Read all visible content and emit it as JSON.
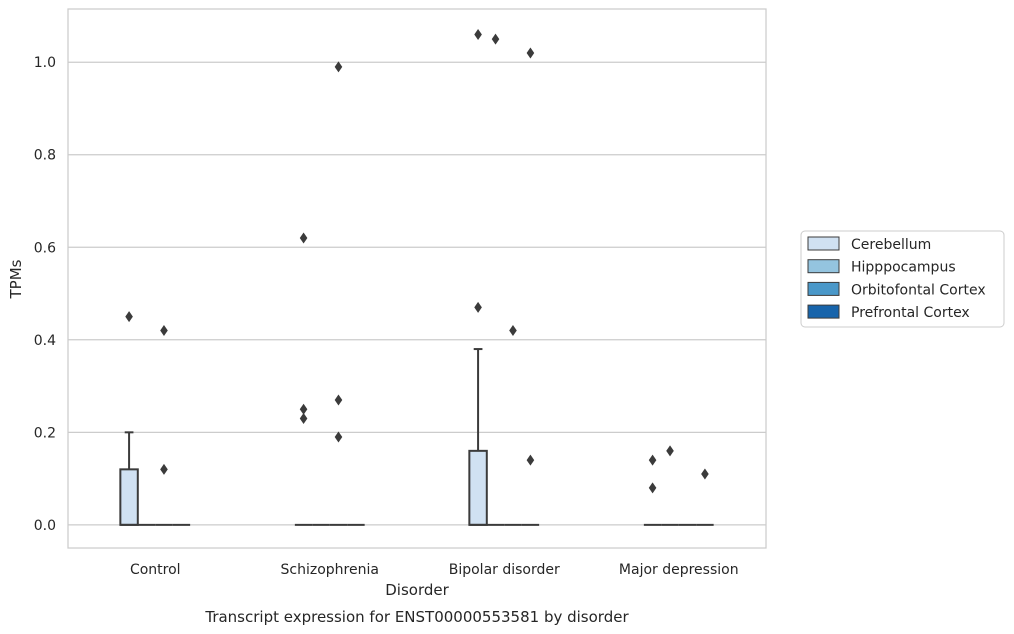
{
  "chart_data": {
    "type": "box",
    "title": "",
    "caption": "Transcript expression for ENST00000553581 by disorder",
    "xlabel": "Disorder",
    "ylabel": "TPMs",
    "ylim": [
      -0.05,
      1.115
    ],
    "yticks": [
      "0.0",
      "0.2",
      "0.4",
      "0.6",
      "0.8",
      "1.0"
    ],
    "ytick_values": [
      0.0,
      0.2,
      0.4,
      0.6,
      0.8,
      1.0
    ],
    "grid": "horizontal",
    "legend_position": "right",
    "categories": [
      "Control",
      "Schizophrenia",
      "Bipolar disorder",
      "Major depression"
    ],
    "series": [
      {
        "name": "Cerebellum",
        "color": "#d0e1f2",
        "boxes": [
          {
            "q1": 0.0,
            "median": 0.0,
            "q3": 0.12,
            "whisker_low": 0.0,
            "whisker_high": 0.2,
            "outliers": [
              0.45
            ]
          },
          {
            "q1": 0.0,
            "median": 0.0,
            "q3": 0.0,
            "whisker_low": 0.0,
            "whisker_high": 0.0,
            "outliers": [
              0.62,
              0.25,
              0.23
            ]
          },
          {
            "q1": 0.0,
            "median": 0.0,
            "q3": 0.16,
            "whisker_low": 0.0,
            "whisker_high": 0.38,
            "outliers": [
              1.06,
              0.47
            ]
          },
          {
            "q1": 0.0,
            "median": 0.0,
            "q3": 0.0,
            "whisker_low": 0.0,
            "whisker_high": 0.0,
            "outliers": [
              0.14,
              0.08
            ]
          }
        ]
      },
      {
        "name": "Hipppocampus",
        "color": "#94c4df",
        "boxes": [
          {
            "q1": 0.0,
            "median": 0.0,
            "q3": 0.0,
            "whisker_low": 0.0,
            "whisker_high": 0.0,
            "outliers": []
          },
          {
            "q1": 0.0,
            "median": 0.0,
            "q3": 0.0,
            "whisker_low": 0.0,
            "whisker_high": 0.0,
            "outliers": []
          },
          {
            "q1": 0.0,
            "median": 0.0,
            "q3": 0.0,
            "whisker_low": 0.0,
            "whisker_high": 0.0,
            "outliers": [
              1.05
            ]
          },
          {
            "q1": 0.0,
            "median": 0.0,
            "q3": 0.0,
            "whisker_low": 0.0,
            "whisker_high": 0.0,
            "outliers": [
              0.16
            ]
          }
        ]
      },
      {
        "name": "Orbitofontal Cortex",
        "color": "#4a98c9",
        "boxes": [
          {
            "q1": 0.0,
            "median": 0.0,
            "q3": 0.0,
            "whisker_low": 0.0,
            "whisker_high": 0.0,
            "outliers": [
              0.42,
              0.12
            ]
          },
          {
            "q1": 0.0,
            "median": 0.0,
            "q3": 0.0,
            "whisker_low": 0.0,
            "whisker_high": 0.0,
            "outliers": [
              0.99,
              0.27,
              0.19
            ]
          },
          {
            "q1": 0.0,
            "median": 0.0,
            "q3": 0.0,
            "whisker_low": 0.0,
            "whisker_high": 0.0,
            "outliers": [
              0.42
            ]
          },
          {
            "q1": 0.0,
            "median": 0.0,
            "q3": 0.0,
            "whisker_low": 0.0,
            "whisker_high": 0.0,
            "outliers": []
          }
        ]
      },
      {
        "name": "Prefrontal Cortex",
        "color": "#1764ab",
        "boxes": [
          {
            "q1": 0.0,
            "median": 0.0,
            "q3": 0.0,
            "whisker_low": 0.0,
            "whisker_high": 0.0,
            "outliers": []
          },
          {
            "q1": 0.0,
            "median": 0.0,
            "q3": 0.0,
            "whisker_low": 0.0,
            "whisker_high": 0.0,
            "outliers": []
          },
          {
            "q1": 0.0,
            "median": 0.0,
            "q3": 0.0,
            "whisker_low": 0.0,
            "whisker_high": 0.0,
            "outliers": [
              1.02,
              0.14
            ]
          },
          {
            "q1": 0.0,
            "median": 0.0,
            "q3": 0.0,
            "whisker_low": 0.0,
            "whisker_high": 0.0,
            "outliers": [
              0.11
            ]
          }
        ]
      }
    ]
  }
}
